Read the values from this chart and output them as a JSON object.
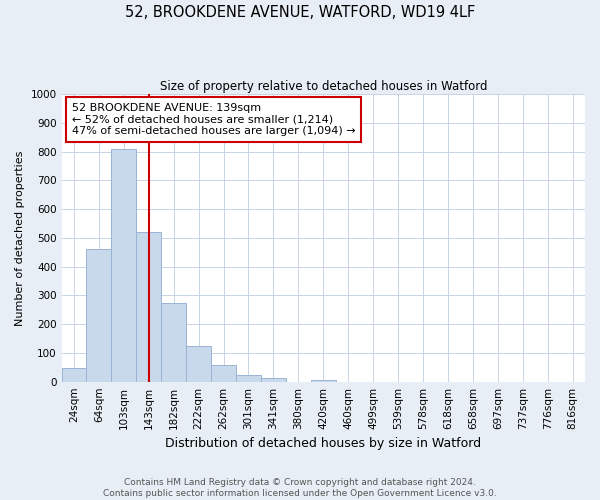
{
  "title": "52, BROOKDENE AVENUE, WATFORD, WD19 4LF",
  "subtitle": "Size of property relative to detached houses in Watford",
  "xlabel": "Distribution of detached houses by size in Watford",
  "ylabel": "Number of detached properties",
  "footer_line1": "Contains HM Land Registry data © Crown copyright and database right 2024.",
  "footer_line2": "Contains public sector information licensed under the Open Government Licence v3.0.",
  "bin_labels": [
    "24sqm",
    "64sqm",
    "103sqm",
    "143sqm",
    "182sqm",
    "222sqm",
    "262sqm",
    "301sqm",
    "341sqm",
    "380sqm",
    "420sqm",
    "460sqm",
    "499sqm",
    "539sqm",
    "578sqm",
    "618sqm",
    "658sqm",
    "697sqm",
    "737sqm",
    "776sqm",
    "816sqm"
  ],
  "bar_heights": [
    46,
    460,
    810,
    520,
    275,
    125,
    57,
    22,
    12,
    0,
    7,
    0,
    0,
    0,
    0,
    0,
    0,
    0,
    0,
    0,
    0
  ],
  "bar_color": "#c8d9ec",
  "bar_edge_color": "#9ab4d4",
  "vline_pos": 3.0,
  "vline_color": "#cc0000",
  "annotation_text": "52 BROOKDENE AVENUE: 139sqm\n← 52% of detached houses are smaller (1,214)\n47% of semi-detached houses are larger (1,094) →",
  "annotation_box_facecolor": "white",
  "annotation_box_edgecolor": "#cc0000",
  "ylim": [
    0,
    1000
  ],
  "yticks": [
    0,
    100,
    200,
    300,
    400,
    500,
    600,
    700,
    800,
    900,
    1000
  ],
  "fig_background": "#e8eef5",
  "plot_background": "white",
  "grid_color": "#c8d4e4",
  "title_fontsize": 10.5,
  "subtitle_fontsize": 8.5,
  "ylabel_fontsize": 8,
  "xlabel_fontsize": 9,
  "tick_fontsize": 7.5,
  "footer_fontsize": 6.5,
  "annotation_fontsize": 8
}
